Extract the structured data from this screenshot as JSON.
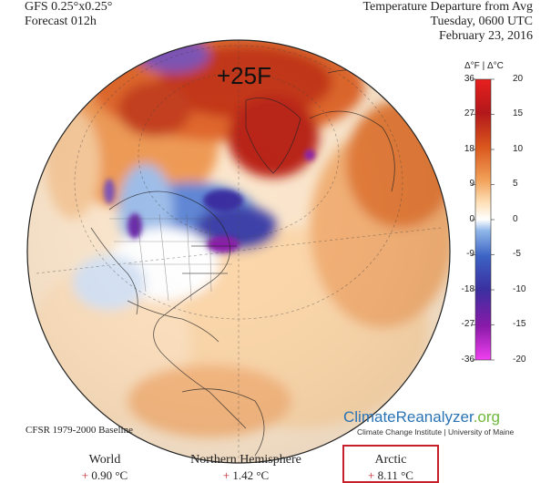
{
  "header": {
    "model_line": "GFS 0.25°x0.25°",
    "forecast_line": "Forecast 012h",
    "title_line": "Temperature Departure from Avg",
    "day_line": "Tuesday, 0600 UTC",
    "date_line": "February 23, 2016"
  },
  "map": {
    "annotation": "+25F"
  },
  "legend": {
    "units": "Δ°F | Δ°C",
    "f_ticks": [
      "36",
      "27",
      "18",
      "9",
      "0",
      "-9",
      "-18",
      "-27",
      "-36"
    ],
    "c_ticks": [
      "20",
      "15",
      "10",
      "5",
      "0",
      "-5",
      "-10",
      "-15",
      "-20"
    ],
    "colors": [
      "#f040f0",
      "#8a1aa8",
      "#3b2fa0",
      "#3c63c4",
      "#8fb6e8",
      "#ffffff",
      "#fde0b8",
      "#f2a25a",
      "#d9561c",
      "#b2181b",
      "#e8201e"
    ]
  },
  "branding": {
    "name": "ClimateReanalyzer",
    "tld": ".org",
    "institute": "Climate Change Institute | University of Maine"
  },
  "footer": {
    "baseline": "CFSR 1979-2000 Baseline",
    "stats": [
      {
        "label": "World",
        "sign": "+",
        "value": "0.90 °C"
      },
      {
        "label": "Northern Hemisphere",
        "sign": "+",
        "value": "1.42 °C"
      },
      {
        "label": "Arctic",
        "sign": "+",
        "value": "8.11 °C"
      }
    ]
  }
}
